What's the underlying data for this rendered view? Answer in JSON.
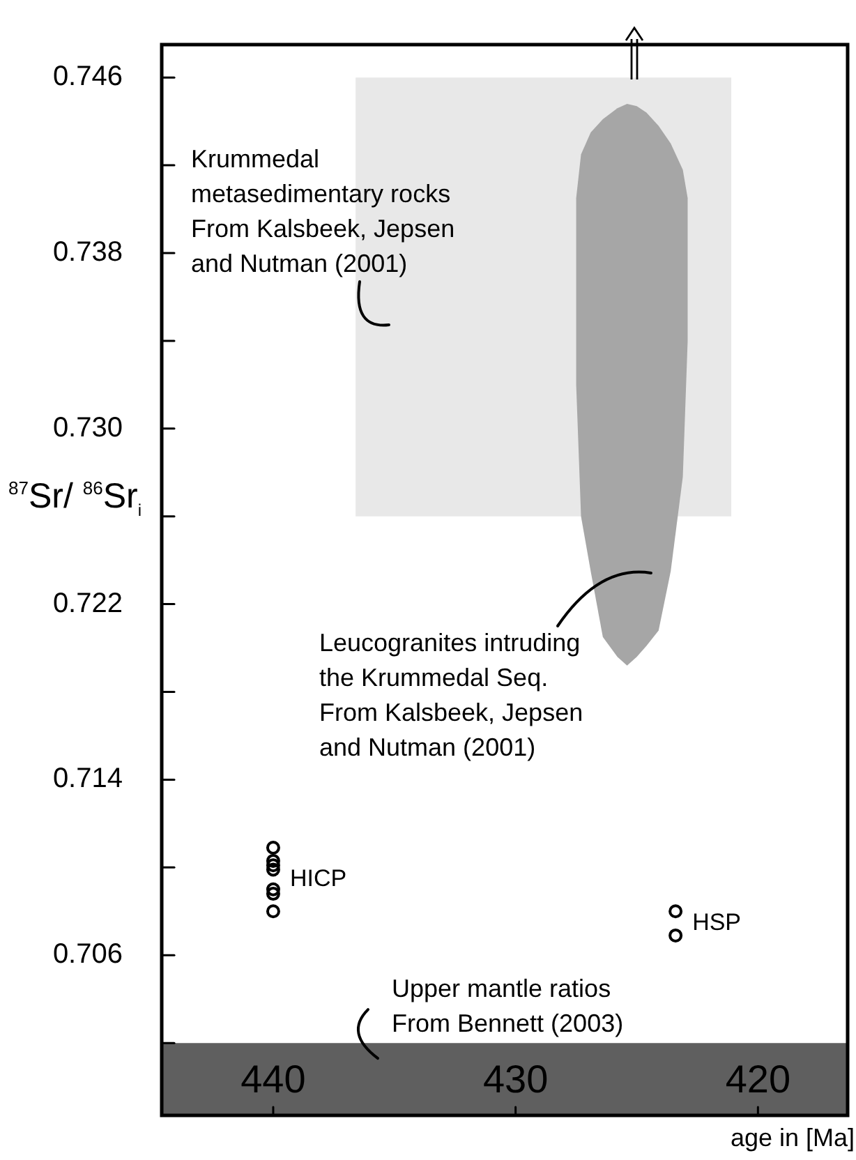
{
  "chart_data": {
    "type": "scatter",
    "ylabel": "$^{87}$Sr/ $^{86}$Sr$_{i}$",
    "xlabel": "age in [Ma]",
    "xlim": [
      444.6,
      416.3
    ],
    "xticks": [
      440,
      430,
      420
    ],
    "ylim": [
      0.6987,
      0.7475
    ],
    "yticks": [
      0.706,
      {
        "value": 0.702,
        "label": null
      },
      {
        "value": 0.71,
        "label": null
      },
      0.714,
      {
        "value": 0.718,
        "label": null
      },
      0.722,
      {
        "value": 0.726,
        "label": null
      },
      {
        "value": 0.73,
        "label": "0.730"
      },
      {
        "value": 0.734,
        "label": null
      },
      0.738,
      {
        "value": 0.742,
        "label": null
      },
      0.746
    ],
    "series": [
      {
        "type": "line",
        "color": "#e8e8e8",
        "x": [
          436.6,
          421.1
        ],
        "values": [
          null,
          null
        ],
        "lower": [
          0.726,
          0.726
        ],
        "upper": [
          0.746,
          0.746
        ]
      },
      {
        "type": "line",
        "color": "#a6a6a6",
        "x": [
          427.5,
          427.3,
          426.9,
          426.4,
          425.8,
          425.4,
          425.0,
          424.6,
          424.1,
          423.6,
          423.1,
          422.9
        ],
        "values": [
          null,
          null,
          null,
          null,
          null,
          null,
          null,
          null,
          null,
          null,
          null,
          null
        ],
        "upper": [
          0.7405,
          0.7425,
          0.7435,
          0.7441,
          0.7446,
          0.7448,
          0.7447,
          0.7444,
          0.7438,
          0.743,
          0.7418,
          0.7405
        ],
        "lower": [
          0.732,
          0.726,
          0.7235,
          0.7205,
          0.7196,
          0.7192,
          0.7196,
          0.7201,
          0.7208,
          0.7235,
          0.7278,
          0.734
        ]
      },
      {
        "name": "HICP",
        "color": "#000000",
        "marker": "circle",
        "x": [
          440,
          440,
          440,
          440,
          440,
          440,
          440
        ],
        "values": [
          0.7109,
          0.7103,
          0.7101,
          0.7099,
          0.709,
          0.7088,
          0.708
        ]
      },
      {
        "name": "HSP",
        "color": "#000000",
        "marker": "circle",
        "x": [
          423.4,
          423.4
        ],
        "values": [
          0.708,
          0.7069
        ]
      }
    ],
    "bands": [
      {
        "axis": "y",
        "from": 0.6987,
        "to": 0.702,
        "color": "#5f5f5f",
        "label": "Upper mantle ratios\nFrom Bennett (2003)"
      }
    ],
    "annotations": [
      "Krummedal\nmetasedimentary rocks\nFrom Kalsbeek, Jepsen\nand Nutman (2001)",
      "Leucogranites intruding\nthe Krummedal Seq.\nFrom Kalsbeek, Jepsen\nand Nutman (2001)"
    ],
    "grid": false,
    "legend": false
  }
}
